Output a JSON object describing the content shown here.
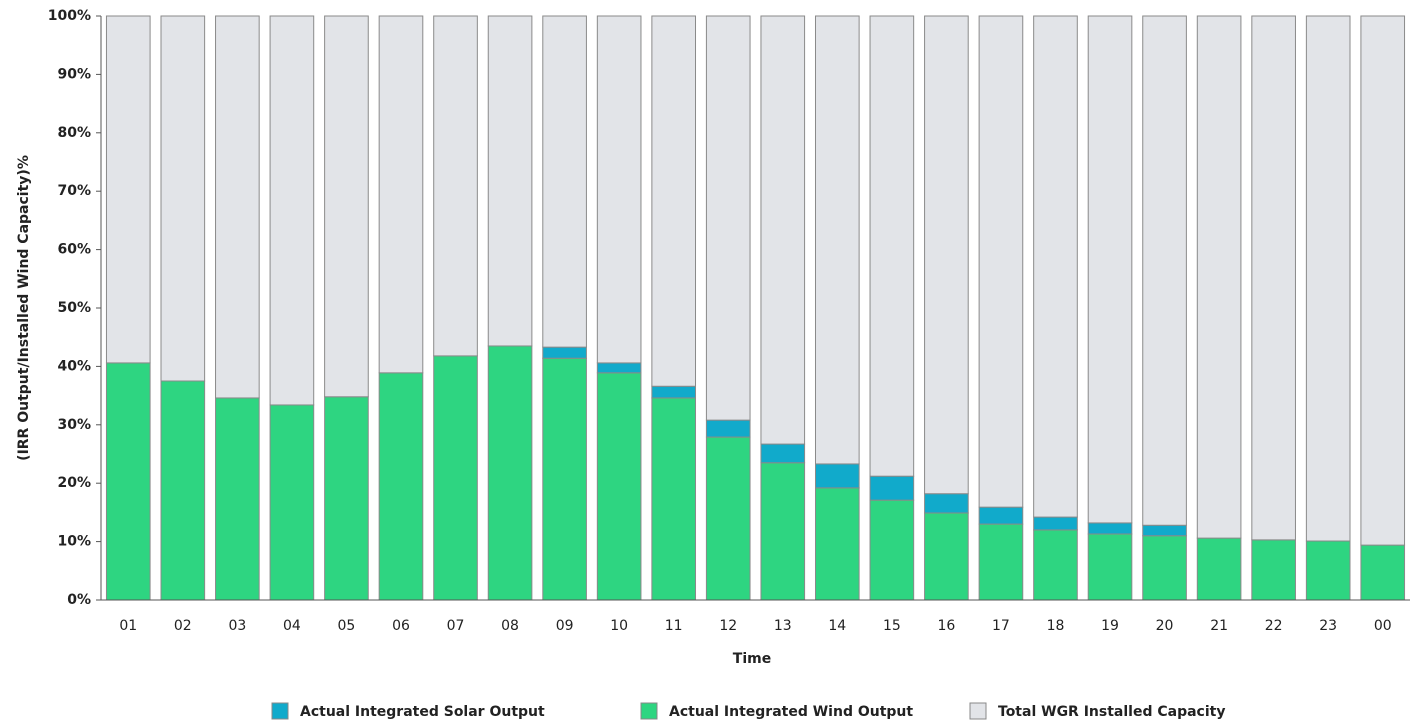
{
  "chart_data": {
    "type": "stacked_bar",
    "y_label": "(IRR  Output/Installed Wind Capacity)%",
    "x_label": "Time",
    "categories": [
      "01",
      "02",
      "03",
      "04",
      "05",
      "06",
      "07",
      "08",
      "09",
      "10",
      "11",
      "12",
      "13",
      "14",
      "15",
      "16",
      "17",
      "18",
      "19",
      "20",
      "21",
      "22",
      "23",
      "00"
    ],
    "series": [
      {
        "name": "Actual Integrated Solar Output",
        "color": "#11aacb",
        "values": [
          0,
          0,
          0,
          0,
          0,
          0,
          0,
          0,
          1.9,
          1.7,
          2.0,
          2.9,
          3.2,
          4.1,
          4.1,
          3.3,
          2.9,
          2.2,
          1.9,
          1.8,
          0,
          0,
          0,
          0
        ]
      },
      {
        "name": "Actual Integrated Wind Output",
        "color": "#2ed581",
        "values": [
          40.6,
          37.5,
          34.6,
          33.4,
          34.8,
          38.9,
          41.8,
          43.5,
          41.4,
          38.9,
          34.6,
          27.9,
          23.5,
          19.2,
          17.1,
          14.9,
          13.0,
          12.0,
          11.3,
          11.0,
          10.6,
          10.3,
          10.1,
          9.4
        ]
      },
      {
        "name": "Total WGR Installed Capacity",
        "color": "#e2e4e8",
        "values": [
          59.4,
          62.5,
          65.4,
          66.6,
          65.2,
          61.1,
          58.2,
          56.5,
          56.7,
          59.4,
          63.4,
          69.2,
          73.3,
          76.7,
          78.8,
          81.8,
          84.1,
          85.8,
          86.8,
          87.2,
          89.4,
          89.7,
          89.9,
          90.6
        ]
      }
    ],
    "ylim": [
      0,
      100
    ],
    "yticks": [
      {
        "value": 0,
        "label": "0%"
      },
      {
        "value": 10,
        "label": "10%"
      },
      {
        "value": 20,
        "label": "20%"
      },
      {
        "value": 30,
        "label": "30%"
      },
      {
        "value": 40,
        "label": "40%"
      },
      {
        "value": 50,
        "label": "50%"
      },
      {
        "value": 60,
        "label": "60%"
      },
      {
        "value": 70,
        "label": "70%"
      },
      {
        "value": 80,
        "label": "80%"
      },
      {
        "value": 90,
        "label": "90%"
      },
      {
        "value": 100,
        "label": "100%"
      }
    ]
  }
}
